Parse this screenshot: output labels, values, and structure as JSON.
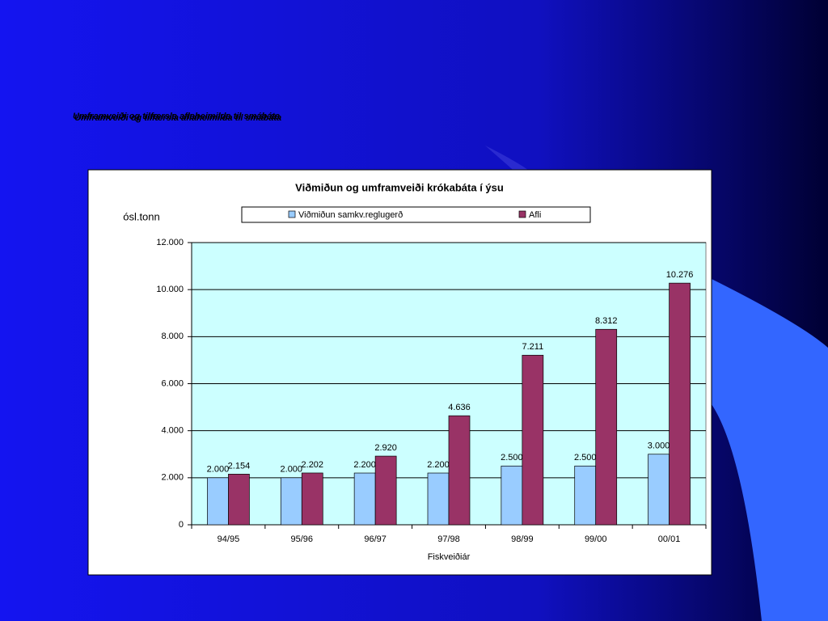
{
  "slide_title": "Umframveiði og tilfærsla aflaheimilda til smábáta",
  "chart_data": {
    "type": "bar",
    "title": "Viðmiðun og umframveiði krókabáta í ýsu",
    "y_label": "ósl.tonn",
    "x_label": "Fiskveiðiár",
    "categories": [
      "94/95",
      "95/96",
      "96/97",
      "97/98",
      "98/99",
      "99/00",
      "00/01"
    ],
    "series": [
      {
        "name": "Viðmiðun samkv.reglugerð",
        "color": "#99ccff",
        "values": [
          2000,
          2000,
          2200,
          2200,
          2500,
          2500,
          3000
        ],
        "value_labels": [
          "2.000",
          "2.000",
          "2.200",
          "2.200",
          "2.500",
          "2.500",
          "3.000"
        ]
      },
      {
        "name": "Afli",
        "color": "#993366",
        "values": [
          2154,
          2202,
          2920,
          4636,
          7211,
          8312,
          10276
        ],
        "value_labels": [
          "2.154",
          "2.202",
          "2.920",
          "4.636",
          "7.211",
          "8.312",
          "10.276"
        ]
      }
    ],
    "ylim": [
      0,
      12000
    ],
    "yticks": [
      0,
      {
        "value": 2000,
        "label": "2.000"
      },
      {
        "value": 4000,
        "label": "4.000"
      },
      {
        "value": 6000,
        "label": "6.000"
      },
      {
        "value": 8000,
        "label": "8.000"
      },
      {
        "value": 10000,
        "label": "10.000"
      },
      {
        "value": 12000,
        "label": "12.000"
      }
    ],
    "grid": true,
    "legend": "top"
  }
}
